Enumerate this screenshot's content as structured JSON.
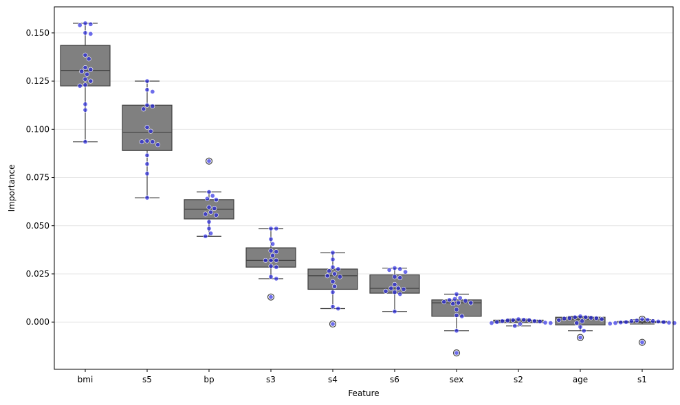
{
  "chart_data": {
    "type": "box+swarm",
    "title": "",
    "xlabel": "Feature",
    "ylabel": "Importance",
    "ylim": [
      -0.0245,
      0.1635
    ],
    "yticks": [
      0.0,
      0.025,
      0.05,
      0.075,
      0.1,
      0.125,
      0.15
    ],
    "ytick_labels": [
      "0.000",
      "0.025",
      "0.050",
      "0.075",
      "0.100",
      "0.125",
      "0.150"
    ],
    "grid": "horizontal",
    "colors": {
      "box_fill": "#808080",
      "box_edge": "#3f3f3f",
      "point": "#1f1fe0",
      "grid": "#e6e6e6"
    },
    "categories": [
      "bmi",
      "s5",
      "bp",
      "s3",
      "s4",
      "s6",
      "sex",
      "s2",
      "age",
      "s1"
    ],
    "boxes": [
      {
        "name": "bmi",
        "whislo": 0.0935,
        "q1": 0.1225,
        "med": 0.1305,
        "q3": 0.1435,
        "whishi": 0.155,
        "fliers": [],
        "points": [
          0.155,
          0.1545,
          0.154,
          0.15,
          0.1495,
          0.1385,
          0.1365,
          0.132,
          0.131,
          0.13,
          0.1285,
          0.126,
          0.125,
          0.123,
          0.1225,
          0.113,
          0.11,
          0.0935
        ]
      },
      {
        "name": "s5",
        "whislo": 0.0645,
        "q1": 0.089,
        "med": 0.0985,
        "q3": 0.1125,
        "whishi": 0.125,
        "fliers": [],
        "points": [
          0.125,
          0.1205,
          0.1195,
          0.1125,
          0.112,
          0.1105,
          0.101,
          0.099,
          0.094,
          0.0935,
          0.0935,
          0.092,
          0.0865,
          0.082,
          0.077,
          0.0645
        ]
      },
      {
        "name": "bp",
        "whislo": 0.0445,
        "q1": 0.0535,
        "med": 0.0585,
        "q3": 0.0635,
        "whishi": 0.0675,
        "fliers": [
          0.0835
        ],
        "points": [
          0.0835,
          0.0675,
          0.0655,
          0.064,
          0.0635,
          0.0595,
          0.059,
          0.057,
          0.056,
          0.0555,
          0.052,
          0.0485,
          0.046,
          0.0445
        ]
      },
      {
        "name": "s3",
        "whislo": 0.0225,
        "q1": 0.0285,
        "med": 0.032,
        "q3": 0.0385,
        "whishi": 0.0485,
        "fliers": [
          0.013
        ],
        "points": [
          0.0485,
          0.0485,
          0.043,
          0.0405,
          0.037,
          0.0365,
          0.0345,
          0.032,
          0.032,
          0.032,
          0.029,
          0.0285,
          0.0235,
          0.0225,
          0.013
        ]
      },
      {
        "name": "s4",
        "whislo": 0.007,
        "q1": 0.017,
        "med": 0.024,
        "q3": 0.0275,
        "whishi": 0.036,
        "fliers": [
          -0.001
        ],
        "points": [
          0.036,
          0.0325,
          0.0285,
          0.0275,
          0.0265,
          0.025,
          0.024,
          0.0235,
          0.021,
          0.0185,
          0.0155,
          0.008,
          0.007,
          -0.001
        ]
      },
      {
        "name": "s6",
        "whislo": 0.0055,
        "q1": 0.015,
        "med": 0.0175,
        "q3": 0.0245,
        "whishi": 0.028,
        "fliers": [],
        "points": [
          0.028,
          0.0275,
          0.027,
          0.026,
          0.0235,
          0.023,
          0.0195,
          0.0175,
          0.0175,
          0.017,
          0.016,
          0.0155,
          0.0145,
          0.0055
        ]
      },
      {
        "name": "sex",
        "whislo": -0.0045,
        "q1": 0.003,
        "med": 0.01,
        "q3": 0.0115,
        "whishi": 0.0145,
        "fliers": [
          -0.016
        ],
        "points": [
          0.0145,
          0.0125,
          0.012,
          0.0115,
          0.011,
          0.0105,
          0.01,
          0.01,
          0.0095,
          0.0065,
          0.0035,
          0.003,
          -0.0045,
          -0.016
        ]
      },
      {
        "name": "s2",
        "whislo": -0.002,
        "q1": -0.0003,
        "med": 0.0005,
        "q3": 0.001,
        "whishi": 0.0015,
        "fliers": [],
        "points": [
          0.0015,
          0.0012,
          0.001,
          0.001,
          0.0008,
          0.0005,
          0.0005,
          0.0003,
          0.0,
          -0.0003,
          -0.0005,
          -0.0005,
          -0.001,
          -0.002
        ]
      },
      {
        "name": "age",
        "whislo": -0.0045,
        "q1": -0.0015,
        "med": 0.0015,
        "q3": 0.0025,
        "whishi": 0.003,
        "fliers": [
          -0.008
        ],
        "points": [
          0.003,
          0.0025,
          0.0025,
          0.0022,
          0.002,
          0.002,
          0.0018,
          0.0015,
          0.001,
          0.0005,
          -0.0005,
          -0.0025,
          -0.0045,
          -0.008
        ]
      },
      {
        "name": "s1",
        "whislo": -0.001,
        "q1": -0.0003,
        "med": 0.0,
        "q3": 0.0003,
        "whishi": 0.0012,
        "fliers": [
          0.0015,
          -0.0105
        ],
        "points": [
          0.0015,
          0.0012,
          0.0008,
          0.0005,
          0.0005,
          0.0003,
          0.0,
          0.0,
          -0.0002,
          -0.0003,
          -0.0005,
          -0.0005,
          -0.0008,
          -0.0105
        ]
      }
    ]
  }
}
